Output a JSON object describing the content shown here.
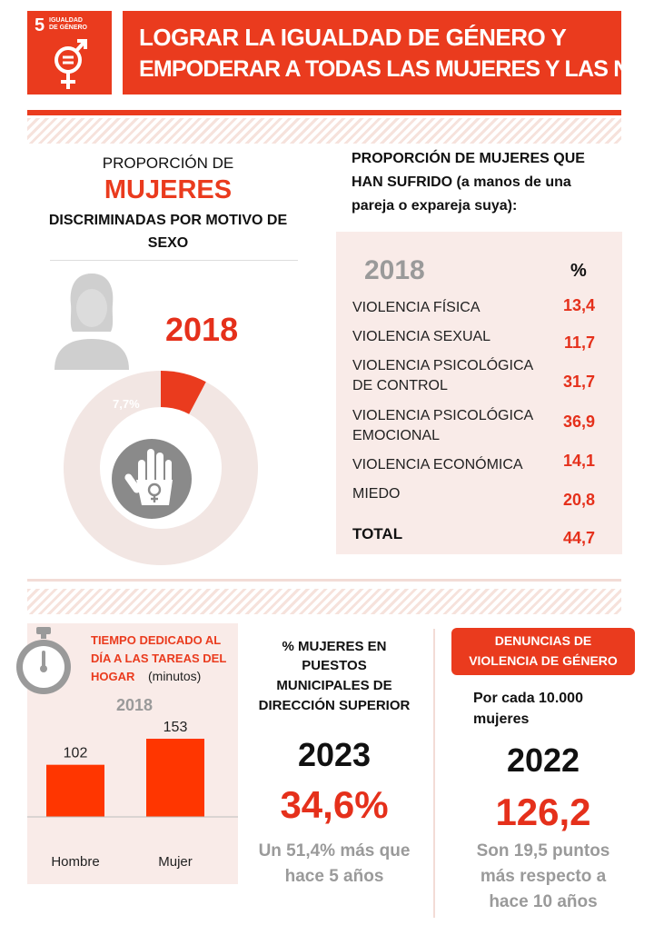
{
  "header": {
    "goal_number": "5",
    "goal_name_line1": "IGUALDAD",
    "goal_name_line2": "DE GÉNERO",
    "title_line1": "LOGRAR LA IGUALDAD DE GÉNERO Y",
    "title_line2": "EMPODERAR A TODAS LAS MUJERES Y LAS NIÑAS"
  },
  "discrimination": {
    "line1": "PROPORCIÓN  DE",
    "highlight": "MUJERES",
    "line3": "DISCRIMINADAS  POR MOTIVO DE",
    "line4": "SEXO",
    "year": "2018",
    "pct_label": "7,7%",
    "pct_value": 7.7
  },
  "violence": {
    "heading_line1": "PROPORCIÓN  DE MUJERES QUE",
    "heading_line2": "HAN SUFRIDO (a manos de una",
    "heading_line3": "pareja o expareja suya):",
    "year": "2018",
    "pct_header": "%",
    "rows": [
      {
        "label1": "VIOLENCIA FÍSICA",
        "label2": "",
        "value": "13,4"
      },
      {
        "label1": "VIOLENCIA SEXUAL",
        "label2": "",
        "value": "11,7"
      },
      {
        "label1": "VIOLENCIA PSICOLÓGICA",
        "label2": "DE CONTROL",
        "value": "31,7"
      },
      {
        "label1": "VIOLENCIA PSICOLÓGICA",
        "label2": "EMOCIONAL",
        "value": "36,9"
      },
      {
        "label1": "VIOLENCIA ECONÓMICA",
        "label2": "",
        "value": "14,1"
      },
      {
        "label1": "MIEDO",
        "label2": "",
        "value": "20,8"
      }
    ],
    "total_label": "TOTAL",
    "total_value": "44,7"
  },
  "housework": {
    "title_line1": "TIEMPO DEDICADO  AL",
    "title_line2": "DÍA A LAS TAREAS DEL",
    "title_line3": "HOGAR",
    "unit": "(minutos)",
    "year": "2018"
  },
  "chart_data": {
    "type": "bar",
    "categories": [
      "Hombre",
      "Mujer"
    ],
    "values": [
      102,
      153
    ],
    "title": "",
    "xlabel": "",
    "ylabel": "",
    "ylim": [
      0,
      160
    ]
  },
  "municipal": {
    "line1": "% MUJERES EN",
    "line2": "PUESTOS",
    "line3": "MUNICIPALES DE",
    "line4": "DIRECCIÓN SUPERIOR",
    "year": "2023",
    "value": "34,6%",
    "note_line1": "Un 51,4% más que",
    "note_line2": "hace 5 años"
  },
  "complaints": {
    "badge_line1": "DENUNCIAS DE",
    "badge_line2": "VIOLENCIA DE GÉNERO",
    "sub_line1": "Por cada 10.000",
    "sub_line2": "mujeres",
    "year": "2022",
    "value": "126,2",
    "note_line1": "Son 19,5 puntos",
    "note_line2": "más respecto a",
    "note_line3": "hace 10 años"
  },
  "colors": {
    "accent": "#ea3b1e",
    "panel": "#f9ebe8",
    "donut": "#f2e6e3",
    "grey_text": "#9a9a9a"
  }
}
